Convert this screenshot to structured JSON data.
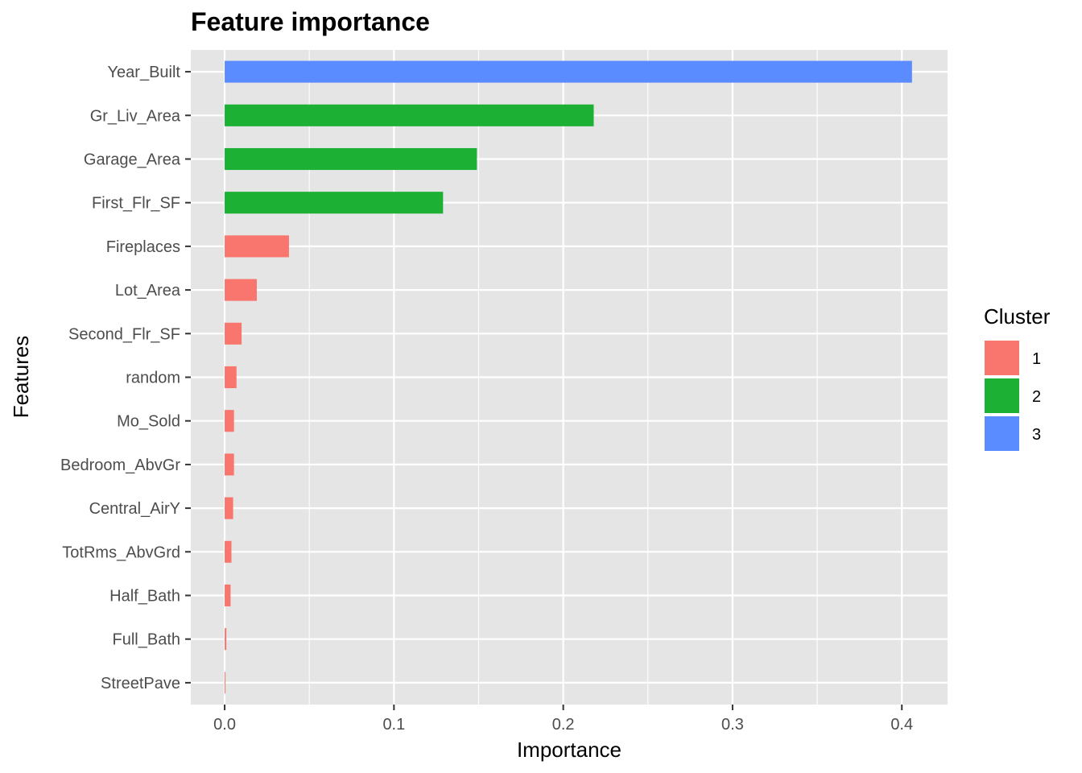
{
  "chart_data": {
    "type": "bar",
    "orientation": "horizontal",
    "title": "Feature importance",
    "xlabel": "Importance",
    "ylabel": "Features",
    "xlim": [
      -0.02,
      0.427
    ],
    "x_ticks": [
      0.0,
      0.1,
      0.2,
      0.3,
      0.4
    ],
    "x_tick_labels": [
      "0.0",
      "0.1",
      "0.2",
      "0.3",
      "0.4"
    ],
    "grid": true,
    "legend": {
      "title": "Cluster",
      "position": "right",
      "entries": [
        {
          "label": "1",
          "color": "#F8766D"
        },
        {
          "label": "2",
          "color": "#1CB035"
        },
        {
          "label": "3",
          "color": "#5B8CFF"
        }
      ]
    },
    "categories": [
      "Year_Built",
      "Gr_Liv_Area",
      "Garage_Area",
      "First_Flr_SF",
      "Fireplaces",
      "Lot_Area",
      "Second_Flr_SF",
      "random",
      "Mo_Sold",
      "Bedroom_AbvGr",
      "Central_AirY",
      "TotRms_AbvGrd",
      "Half_Bath",
      "Full_Bath",
      "StreetPave"
    ],
    "values": [
      0.406,
      0.218,
      0.149,
      0.129,
      0.038,
      0.019,
      0.01,
      0.007,
      0.0055,
      0.0055,
      0.005,
      0.004,
      0.0035,
      0.001,
      0.0005
    ],
    "clusters": [
      "3",
      "2",
      "2",
      "2",
      "1",
      "1",
      "1",
      "1",
      "1",
      "1",
      "1",
      "1",
      "1",
      "1",
      "1"
    ],
    "colors": {
      "panel": "#E5E5E5",
      "grid": "#FFFFFF",
      "tick": "#333333"
    }
  }
}
